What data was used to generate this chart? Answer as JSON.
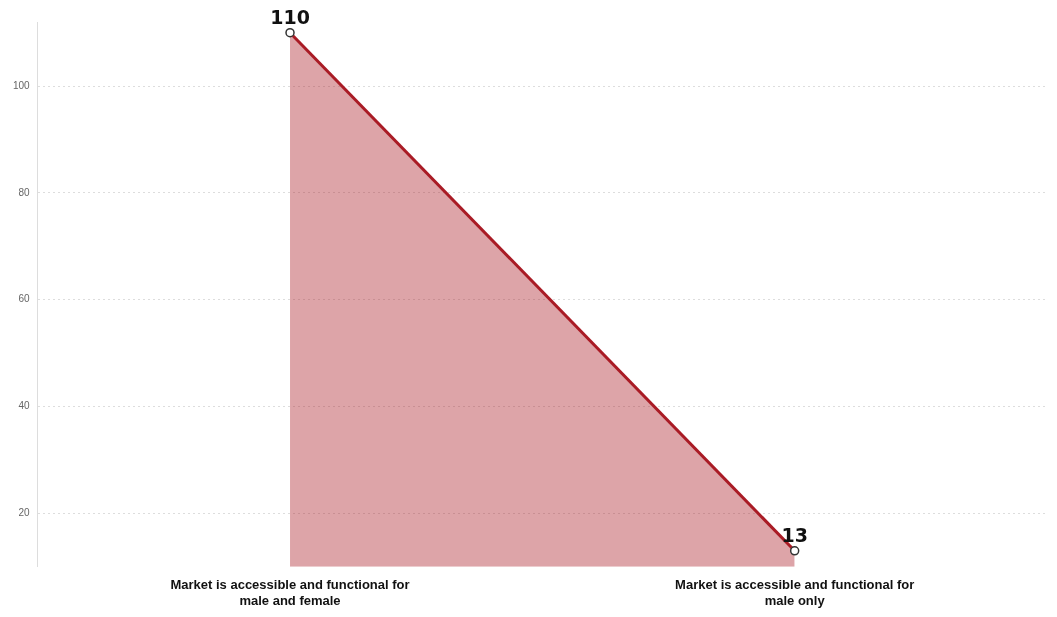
{
  "chart_data": {
    "type": "area",
    "categories": [
      "Market is accessible and functional for male and female",
      "Market is accessible and functional for male only"
    ],
    "series": [
      {
        "color": "#a91b25",
        "values": [
          110,
          13
        ]
      }
    ],
    "ylim": [
      10,
      112
    ],
    "yticks": [
      20,
      40,
      60,
      80,
      100
    ],
    "grid": "y",
    "legend": false,
    "marker": "circle",
    "data_labels": true
  }
}
